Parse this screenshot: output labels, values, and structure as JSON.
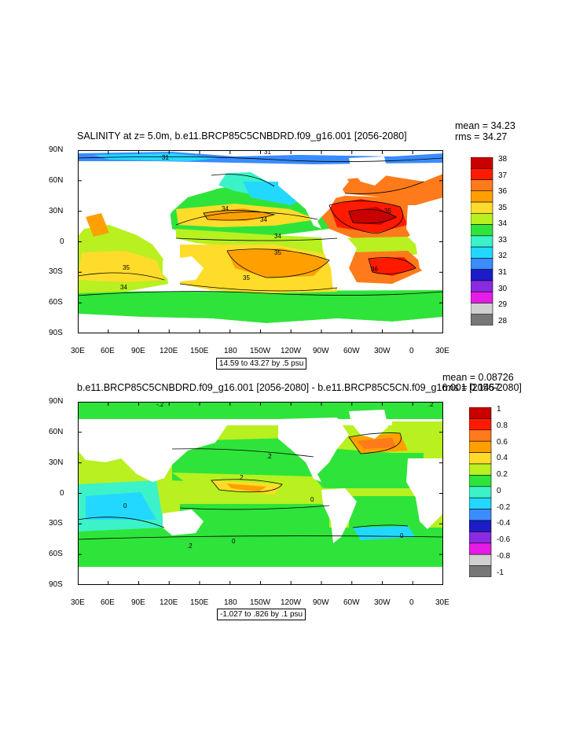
{
  "panels": [
    {
      "title": "SALINITY at z=   5.0m, b.e11.BRCP85C5CNBDRD.f09_g16.001 [2056-2080]",
      "stats": [
        "mean = 34.23",
        "rms = 34.27"
      ],
      "range_note": "14.59 to 43.27 by .5 psu",
      "colorbar_labels": [
        "38",
        "37",
        "36",
        "35",
        "34",
        "33",
        "32",
        "31",
        "30",
        "29",
        "28"
      ],
      "colorbar_colors": [
        "#c80000",
        "#ff1a00",
        "#ff7a1a",
        "#ffa000",
        "#ffdc2a",
        "#b8f020",
        "#2ee43a",
        "#3cf2c8",
        "#23d8ff",
        "#3a8cff",
        "#1c1cc8",
        "#8a2be2",
        "#e61be6",
        "#d0d0d0",
        "#777777"
      ],
      "contour_labels": [
        "31",
        "31",
        "34",
        "34",
        "34",
        "35",
        "35",
        "35",
        "35",
        "36",
        "34"
      ]
    },
    {
      "title": "b.e11.BRCP85C5CNBDRD.f09_g16.001 [2056-2080] - b.e11.BRCP85C5CN.f09_g16.001 [2056-2080]",
      "stats": [
        "mean = 0.08726",
        "rms = 0.1457"
      ],
      "range_note": "-1.027 to .826 by .1 psu",
      "colorbar_labels": [
        "1",
        "0.8",
        "0.6",
        "0.4",
        "0.2",
        "0",
        "-0.2",
        "-0.4",
        "-0.6",
        "-0.8",
        "-1"
      ],
      "colorbar_colors": [
        "#c80000",
        "#ff1a00",
        "#ff7a1a",
        "#ffa000",
        "#ffdc2a",
        "#b8f020",
        "#2ee43a",
        "#3cf2c8",
        "#23d8ff",
        "#3a8cff",
        "#1c1cc8",
        "#8a2be2",
        "#e61be6",
        "#d0d0d0",
        "#777777"
      ],
      "contour_labels": [
        "-.2",
        ".2",
        ".2",
        ".2",
        "0",
        "0",
        "0",
        "0",
        ".2"
      ]
    }
  ],
  "axes": {
    "lon_labels": [
      "30E",
      "60E",
      "90E",
      "120E",
      "150E",
      "180",
      "150W",
      "120W",
      "90W",
      "60W",
      "30W",
      "0",
      "30E"
    ],
    "lat_labels": [
      "90N",
      "60N",
      "30N",
      "0",
      "30S",
      "60S",
      "90S"
    ]
  }
}
